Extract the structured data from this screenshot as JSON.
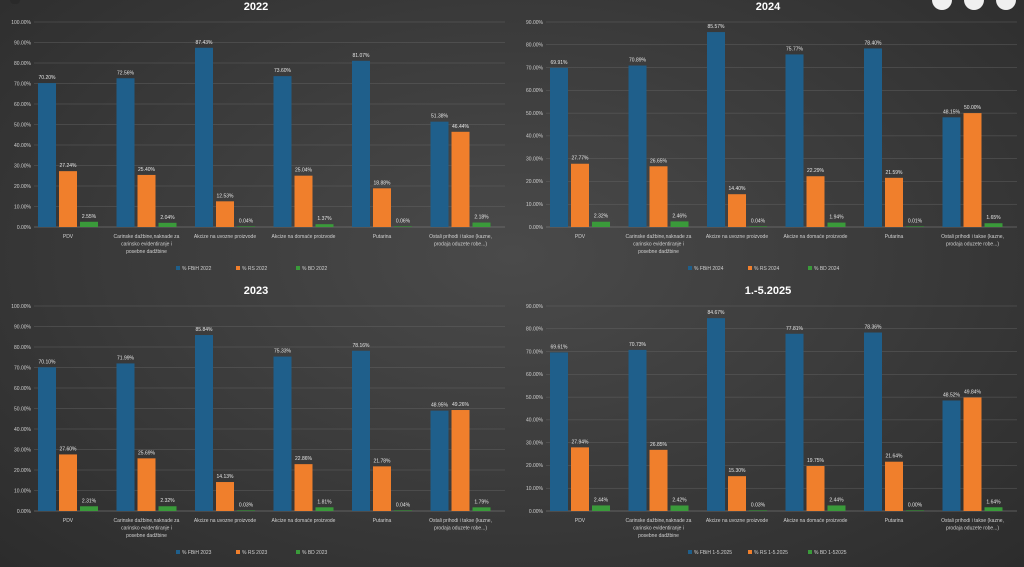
{
  "colors": {
    "fbih": "#1f5f8b",
    "rs": "#f07f2c",
    "bd": "#3a9a3a",
    "grid": "#6a6a6a",
    "text": "#d0d0d0"
  },
  "chart_data": [
    {
      "type": "bar",
      "title": "2022",
      "categories": [
        "PDV",
        "Carinske dažbine,naknade za carinsko evidentiranje i posebne dadžbine",
        "Akcize na uvozne proizvode",
        "Akcize na domaće proizvode",
        "Putarina",
        "Ostali prihodi i takse (kazne, prodaja oduzete robe...)"
      ],
      "series": [
        {
          "name": "% FBiH 2022",
          "values": [
            70.2,
            72.56,
            87.43,
            73.6,
            81.07,
            51.38
          ],
          "labels": [
            "70.20%",
            "72.56%",
            "87.43%",
            "73.60%",
            "81.07%",
            "51.38%"
          ]
        },
        {
          "name": "% RS 2022",
          "values": [
            27.24,
            25.4,
            12.53,
            25.04,
            18.88,
            46.44
          ],
          "labels": [
            "27.24%",
            "25.40%",
            "12.53%",
            "25.04%",
            "18.88%",
            "46.44%"
          ]
        },
        {
          "name": "% BD 2022",
          "values": [
            2.55,
            2.04,
            0.04,
            1.37,
            0.06,
            2.18
          ],
          "labels": [
            "2.55%",
            "2.04%",
            "0.04%",
            "1.37%",
            "0.06%",
            "2.18%"
          ]
        }
      ],
      "yticks": [
        "0.00%",
        "10.00%",
        "20.00%",
        "30.00%",
        "40.00%",
        "50.00%",
        "60.00%",
        "70.00%",
        "80.00%",
        "90.00%",
        "100.00%"
      ],
      "ylim": [
        0,
        100
      ]
    },
    {
      "type": "bar",
      "title": "2024",
      "categories": [
        "PDV",
        "Carinske dažbine,naknade za carinsko evidentiranje i posebne dadžbine",
        "Akcize na uvozne proizvode",
        "Akcize na domaće proizvode",
        "Putarina",
        "Ostali prihodi i takse (kazne, prodaja oduzete robe...)"
      ],
      "series": [
        {
          "name": "% FBiH 2024",
          "values": [
            69.91,
            70.89,
            85.57,
            75.77,
            78.4,
            48.15
          ],
          "labels": [
            "69.91%",
            "70.89%",
            "85.57%",
            "75.77%",
            "78.40%",
            "48.15%"
          ]
        },
        {
          "name": "% RS 2024",
          "values": [
            27.77,
            26.65,
            14.4,
            22.29,
            21.59,
            50.0
          ],
          "labels": [
            "27.77%",
            "26.65%",
            "14.40%",
            "22.29%",
            "21.59%",
            "50.00%"
          ]
        },
        {
          "name": "% BD 2024",
          "values": [
            2.32,
            2.46,
            0.04,
            1.94,
            0.01,
            1.65
          ],
          "labels": [
            "2.32%",
            "2.46%",
            "0.04%",
            "1.94%",
            "0.01%",
            "1.65%"
          ]
        }
      ],
      "yticks": [
        "0.00%",
        "10.00%",
        "20.00%",
        "30.00%",
        "40.00%",
        "50.00%",
        "60.00%",
        "70.00%",
        "80.00%",
        "90.00%"
      ],
      "ylim": [
        0,
        90
      ]
    },
    {
      "type": "bar",
      "title": "2023",
      "categories": [
        "PDV",
        "Carinske dažbine,naknade za carinsko evidentiranje i posebne dadžbine",
        "Akcize na uvozne proizvode",
        "Akcize na domaće proizvode",
        "Putarina",
        "Ostali prihodi i takse (kazne, prodaja oduzete robe...)"
      ],
      "series": [
        {
          "name": "% FBiH 2023",
          "values": [
            70.1,
            71.99,
            85.84,
            75.33,
            78.16,
            48.95
          ],
          "labels": [
            "70.10%",
            "71.99%",
            "85.84%",
            "75.33%",
            "78.16%",
            "48.95%"
          ]
        },
        {
          "name": "% RS 2023",
          "values": [
            27.6,
            25.69,
            14.13,
            22.86,
            21.78,
            49.26
          ],
          "labels": [
            "27.60%",
            "25.69%",
            "14.13%",
            "22.86%",
            "21.78%",
            "49.26%"
          ]
        },
        {
          "name": "% BD 2023",
          "values": [
            2.31,
            2.32,
            0.03,
            1.81,
            0.04,
            1.79
          ],
          "labels": [
            "2.31%",
            "2.32%",
            "0.03%",
            "1.81%",
            "0.04%",
            "1.79%"
          ]
        }
      ],
      "yticks": [
        "0.00%",
        "10.00%",
        "20.00%",
        "30.00%",
        "40.00%",
        "50.00%",
        "60.00%",
        "70.00%",
        "80.00%",
        "90.00%",
        "100.00%"
      ],
      "ylim": [
        0,
        100
      ]
    },
    {
      "type": "bar",
      "title": "1.-5.2025",
      "categories": [
        "PDV",
        "Carinske dažbine,naknade za carinsko evidentiranje i posebne dadžbine",
        "Akcize na uvozne proizvode",
        "Akcize na domaće proizvode",
        "Putarina",
        "Ostali prihodi i takse (kazne, prodaja oduzete robe...)"
      ],
      "series": [
        {
          "name": "% FBiH 1-5.2025",
          "values": [
            69.61,
            70.73,
            84.67,
            77.81,
            78.36,
            48.52
          ],
          "labels": [
            "69.61%",
            "70.73%",
            "84.67%",
            "77.81%",
            "78.36%",
            "48.52%"
          ]
        },
        {
          "name": "% RS 1-5.2025",
          "values": [
            27.94,
            26.85,
            15.3,
            19.75,
            21.64,
            49.84
          ],
          "labels": [
            "27.94%",
            "26.85%",
            "15.30%",
            "19.75%",
            "21.64%",
            "49.84%"
          ]
        },
        {
          "name": "% BD 1-52025",
          "values": [
            2.44,
            2.42,
            0.03,
            2.44,
            0.0,
            1.64
          ],
          "labels": [
            "2.44%",
            "2.42%",
            "0.03%",
            "2.44%",
            "0.00%",
            "1.64%"
          ]
        }
      ],
      "yticks": [
        "0.00%",
        "10.00%",
        "20.00%",
        "30.00%",
        "40.00%",
        "50.00%",
        "60.00%",
        "70.00%",
        "80.00%",
        "90.00%"
      ],
      "ylim": [
        0,
        90
      ]
    }
  ]
}
